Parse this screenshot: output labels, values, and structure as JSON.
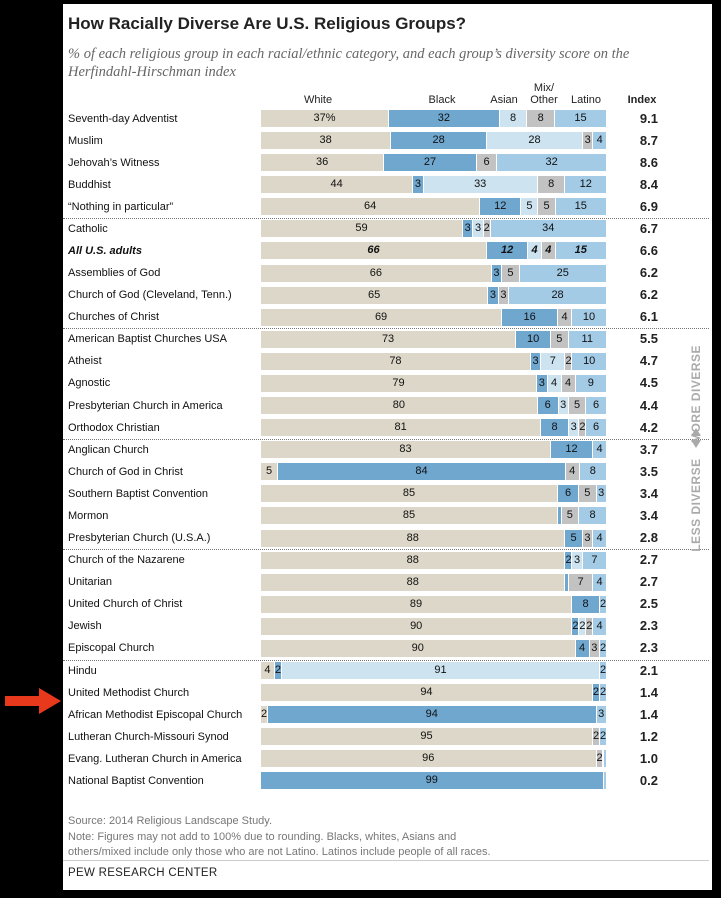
{
  "colors": {
    "white": "#dcd7c8",
    "black": "#6fa7cf",
    "asian": "#cde3f0",
    "other": "#c2c2c2",
    "latino": "#a3cbe6",
    "arrow": "#e8391c"
  },
  "header": {
    "title": "How Racially Diverse Are U.S. Religious Groups?",
    "subtitle": "% of each religious group in each racial/ethnic category, and each group’s diversity score on the Herfindahl-Hirschman index"
  },
  "columns": {
    "white": "White",
    "black": "Black",
    "asian": "Asian",
    "other_line1": "Mix/",
    "other_line2": "Other",
    "latino": "Latino",
    "index": "Index"
  },
  "side_labels": {
    "more": "MORE DIVERSE",
    "less": "LESS DIVERSE"
  },
  "chart_data": {
    "type": "bar",
    "stacked": true,
    "orientation": "horizontal",
    "title": "How Racially Diverse Are U.S. Religious Groups?",
    "subtitle": "% of each religious group in each racial/ethnic category, and each group’s diversity score on the Herfindahl-Hirschman index",
    "series": [
      {
        "name": "White"
      },
      {
        "name": "Black"
      },
      {
        "name": "Asian"
      },
      {
        "name": "Mix/Other"
      },
      {
        "name": "Latino"
      }
    ],
    "rows": [
      {
        "label": "Seventh-day Adventist",
        "values": [
          37,
          32,
          8,
          8,
          15
        ],
        "labels": [
          "37%",
          "32",
          "8",
          "8",
          "15"
        ],
        "index": "9.1"
      },
      {
        "label": "Muslim",
        "values": [
          38,
          28,
          28,
          3,
          4
        ],
        "labels": [
          "38",
          "28",
          "28",
          "3",
          "4"
        ],
        "index": "8.7"
      },
      {
        "label": "Jehovah’s Witness",
        "values": [
          36,
          27,
          0,
          6,
          32
        ],
        "labels": [
          "36",
          "27",
          "",
          "6",
          "32"
        ],
        "index": "8.6"
      },
      {
        "label": "Buddhist",
        "values": [
          44,
          3,
          33,
          8,
          12
        ],
        "labels": [
          "44",
          "3",
          "33",
          "8",
          "12"
        ],
        "index": "8.4"
      },
      {
        "label": "“Nothing in particular”",
        "values": [
          64,
          12,
          5,
          5,
          15
        ],
        "labels": [
          "64",
          "12",
          "5",
          "5",
          "15"
        ],
        "index": "6.9",
        "sep": true
      },
      {
        "label": "Catholic",
        "values": [
          59,
          3,
          3,
          2,
          34
        ],
        "labels": [
          "59",
          "3",
          "3",
          "2",
          "34"
        ],
        "index": "6.7"
      },
      {
        "label": "All U.S. adults",
        "values": [
          66,
          12,
          4,
          4,
          15
        ],
        "labels": [
          "66",
          "12",
          "4",
          "4",
          "15"
        ],
        "index": "6.6",
        "bold": true
      },
      {
        "label": "Assemblies of God",
        "values": [
          66,
          3,
          0,
          5,
          25
        ],
        "labels": [
          "66",
          "3",
          "",
          "5",
          "25"
        ],
        "index": "6.2"
      },
      {
        "label": "Church of God (Cleveland, Tenn.)",
        "values": [
          65,
          3,
          0,
          3,
          28
        ],
        "labels": [
          "65",
          "3",
          "",
          "3",
          "28"
        ],
        "index": "6.2"
      },
      {
        "label": "Churches of Christ",
        "values": [
          69,
          16,
          0,
          4,
          10
        ],
        "labels": [
          "69",
          "16",
          "",
          "4",
          "10"
        ],
        "index": "6.1",
        "sep": true
      },
      {
        "label": "American Baptist Churches USA",
        "values": [
          73,
          10,
          0,
          5,
          11
        ],
        "labels": [
          "73",
          "10",
          "",
          "5",
          "11"
        ],
        "index": "5.5"
      },
      {
        "label": "Atheist",
        "values": [
          78,
          3,
          7,
          2,
          10
        ],
        "labels": [
          "78",
          "3",
          "7",
          "2",
          "10"
        ],
        "index": "4.7"
      },
      {
        "label": "Agnostic",
        "values": [
          79,
          3,
          4,
          4,
          9
        ],
        "labels": [
          "79",
          "3",
          "4",
          "4",
          "9"
        ],
        "index": "4.5"
      },
      {
        "label": "Presbyterian Church in America",
        "values": [
          80,
          6,
          3,
          5,
          6
        ],
        "labels": [
          "80",
          "6",
          "3",
          "5",
          "6"
        ],
        "index": "4.4"
      },
      {
        "label": "Orthodox Christian",
        "values": [
          81,
          8,
          3,
          2,
          6
        ],
        "labels": [
          "81",
          "8",
          "3",
          "2",
          "6"
        ],
        "index": "4.2",
        "sep": true
      },
      {
        "label": "Anglican Church",
        "values": [
          83,
          12,
          0,
          0,
          4
        ],
        "labels": [
          "83",
          "12",
          "",
          "",
          "4"
        ],
        "index": "3.7"
      },
      {
        "label": "Church of God in Christ",
        "values": [
          5,
          84,
          0,
          4,
          8
        ],
        "labels": [
          "5",
          "84",
          "",
          "4",
          "8"
        ],
        "index": "3.5"
      },
      {
        "label": "Southern Baptist Convention",
        "values": [
          85,
          6,
          0,
          5,
          3
        ],
        "labels": [
          "85",
          "6",
          "",
          "5",
          "3"
        ],
        "index": "3.4"
      },
      {
        "label": "Mormon",
        "values": [
          85,
          1,
          0,
          5,
          8
        ],
        "labels": [
          "85",
          "",
          "",
          "5",
          "8"
        ],
        "index": "3.4"
      },
      {
        "label": "Presbyterian Church (U.S.A.)",
        "values": [
          88,
          5,
          0,
          3,
          4
        ],
        "labels": [
          "88",
          "5",
          "",
          "3",
          "4"
        ],
        "index": "2.8",
        "sep": true
      },
      {
        "label": "Church of the Nazarene",
        "values": [
          88,
          2,
          3,
          0,
          7
        ],
        "labels": [
          "88",
          "2",
          "3",
          "",
          "7"
        ],
        "index": "2.7"
      },
      {
        "label": "Unitarian",
        "values": [
          88,
          1,
          0,
          7,
          4
        ],
        "labels": [
          "88",
          "",
          "",
          "7",
          "4"
        ],
        "index": "2.7"
      },
      {
        "label": "United Church of Christ",
        "values": [
          89,
          8,
          0,
          0,
          2
        ],
        "labels": [
          "89",
          "8",
          "",
          "",
          "2"
        ],
        "index": "2.5"
      },
      {
        "label": "Jewish",
        "values": [
          90,
          2,
          2,
          2,
          4
        ],
        "labels": [
          "90",
          "2",
          "2",
          "2",
          "4"
        ],
        "index": "2.3"
      },
      {
        "label": "Episcopal Church",
        "values": [
          90,
          4,
          0,
          3,
          2
        ],
        "labels": [
          "90",
          "4",
          "",
          "3",
          "2"
        ],
        "index": "2.3",
        "sep": true
      },
      {
        "label": "Hindu",
        "values": [
          4,
          2,
          91,
          0,
          2
        ],
        "labels": [
          "4",
          "2",
          "91",
          "",
          "2"
        ],
        "index": "2.1"
      },
      {
        "label": "United Methodist Church",
        "values": [
          94,
          2,
          0,
          0,
          2
        ],
        "labels": [
          "94",
          "2",
          "",
          "",
          "2"
        ],
        "index": "1.4",
        "arrow": true
      },
      {
        "label": "African Methodist Episcopal Church",
        "values": [
          2,
          94,
          0,
          0,
          3
        ],
        "labels": [
          "2",
          "94",
          "",
          "",
          "3"
        ],
        "index": "1.4"
      },
      {
        "label": "Lutheran Church-Missouri Synod",
        "values": [
          95,
          0,
          0,
          2,
          2
        ],
        "labels": [
          "95",
          "",
          "",
          "2",
          "2"
        ],
        "index": "1.2"
      },
      {
        "label": "Evang. Lutheran Church in America",
        "values": [
          96,
          0,
          0,
          2,
          1
        ],
        "labels": [
          "96",
          "",
          "",
          "2",
          ""
        ],
        "index": "1.0"
      },
      {
        "label": "National Baptist Convention",
        "values": [
          0,
          99,
          0,
          0,
          1
        ],
        "labels": [
          "",
          "99",
          "",
          "",
          ""
        ],
        "index": "0.2"
      }
    ]
  },
  "footer": {
    "source": "Source: 2014 Religious Landscape Study.",
    "note1": "Note: Figures may not add to 100% due to rounding. Blacks, whites, Asians and",
    "note2": "others/mixed include only those who are not Latino. Latinos include people of all races.",
    "credit": "PEW RESEARCH CENTER"
  }
}
